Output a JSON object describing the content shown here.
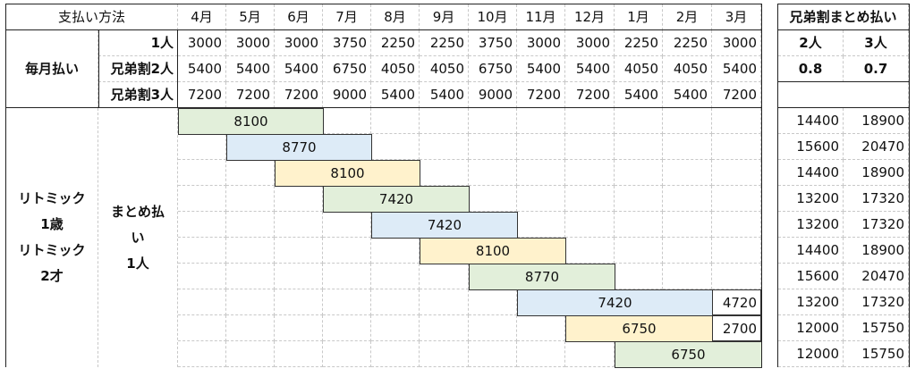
{
  "header": {
    "method_label": "支払い方法",
    "months": [
      "4月",
      "5月",
      "6月",
      "7月",
      "8月",
      "9月",
      "10月",
      "11月",
      "12月",
      "1月",
      "2月",
      "3月"
    ],
    "discount_title": "兄弟割まとめ払い"
  },
  "monthly": {
    "group_label": "毎月払い",
    "rows": [
      {
        "label": "1人",
        "values": [
          "3000",
          "3000",
          "3000",
          "3750",
          "2250",
          "2250",
          "3750",
          "3000",
          "3000",
          "2250",
          "2250",
          "3000"
        ]
      },
      {
        "label": "兄弟割2人",
        "values": [
          "5400",
          "5400",
          "5400",
          "6750",
          "4050",
          "4050",
          "6750",
          "5400",
          "5400",
          "4050",
          "4050",
          "5400"
        ]
      },
      {
        "label": "兄弟割3人",
        "values": [
          "7200",
          "7200",
          "7200",
          "9000",
          "5400",
          "5400",
          "9000",
          "7200",
          "7200",
          "5400",
          "5400",
          "7200"
        ]
      }
    ]
  },
  "discount": {
    "headers": [
      "2人",
      "3人"
    ],
    "rates": [
      "0.8",
      "0.7"
    ]
  },
  "lump": {
    "course_lines": [
      "リトミック",
      "1歳",
      "リトミック",
      "2才"
    ],
    "type_lines": [
      "まとめ払",
      "い",
      "1人"
    ],
    "rows": [
      {
        "bar_value": "8100",
        "extra": "",
        "two": "14400",
        "three": "18900"
      },
      {
        "bar_value": "8770",
        "extra": "",
        "two": "15600",
        "three": "20470"
      },
      {
        "bar_value": "8100",
        "extra": "",
        "two": "14400",
        "three": "18900"
      },
      {
        "bar_value": "7420",
        "extra": "",
        "two": "13200",
        "three": "17320"
      },
      {
        "bar_value": "7420",
        "extra": "",
        "two": "13200",
        "three": "17320"
      },
      {
        "bar_value": "8100",
        "extra": "",
        "two": "14400",
        "three": "18900"
      },
      {
        "bar_value": "8770",
        "extra": "",
        "two": "15600",
        "three": "20470"
      },
      {
        "bar_value": "7420",
        "extra": "4720",
        "two": "13200",
        "three": "17320"
      },
      {
        "bar_value": "6750",
        "extra": "2700",
        "two": "12000",
        "three": "15750"
      },
      {
        "bar_value": "6750",
        "extra": "",
        "two": "12000",
        "three": "15750"
      }
    ]
  },
  "colors": {
    "green": "#e2efda",
    "blue": "#ddebf7",
    "yellow": "#fff2cc"
  }
}
